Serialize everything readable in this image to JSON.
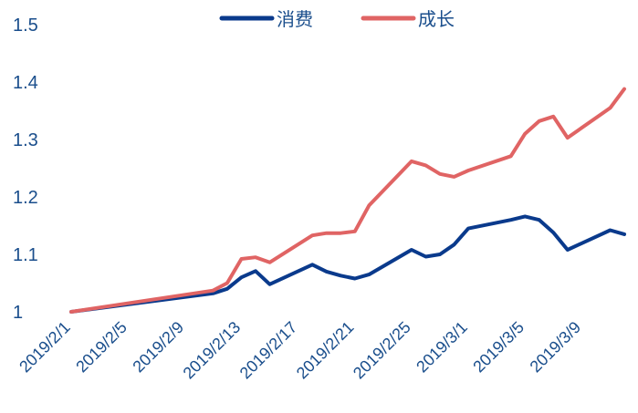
{
  "chart_data": {
    "type": "line",
    "title": "",
    "xlabel": "",
    "ylabel": "",
    "ylim": [
      1,
      1.5
    ],
    "yticks": [
      "1",
      "1.1",
      "1.2",
      "1.3",
      "1.4",
      "1.5"
    ],
    "grid": false,
    "legend": "top",
    "x_tick_labels": [
      "2019/2/1",
      "2019/2/5",
      "2019/2/9",
      "2019/2/13",
      "2019/2/17",
      "2019/2/21",
      "2019/2/25",
      "2019/3/1",
      "2019/3/5",
      "2019/3/9"
    ],
    "x": [
      "2019/2/1",
      "2019/2/11",
      "2019/2/12",
      "2019/2/13",
      "2019/2/14",
      "2019/2/15",
      "2019/2/18",
      "2019/2/19",
      "2019/2/20",
      "2019/2/21",
      "2019/2/22",
      "2019/2/25",
      "2019/2/26",
      "2019/2/27",
      "2019/2/28",
      "2019/3/1",
      "2019/3/4",
      "2019/3/5",
      "2019/3/6",
      "2019/3/7",
      "2019/3/8",
      "2019/3/11",
      "2019/3/12"
    ],
    "series": [
      {
        "name": "消费",
        "color": "#0a3a8c",
        "values": [
          1.0,
          1.032,
          1.04,
          1.06,
          1.071,
          1.048,
          1.082,
          1.07,
          1.063,
          1.058,
          1.065,
          1.108,
          1.096,
          1.1,
          1.117,
          1.145,
          1.16,
          1.166,
          1.16,
          1.138,
          1.108,
          1.142,
          1.135
        ]
      },
      {
        "name": "成长",
        "color": "#e06464",
        "values": [
          1.0,
          1.037,
          1.05,
          1.092,
          1.095,
          1.086,
          1.133,
          1.137,
          1.137,
          1.14,
          1.185,
          1.262,
          1.255,
          1.24,
          1.235,
          1.246,
          1.271,
          1.31,
          1.332,
          1.34,
          1.303,
          1.355,
          1.388
        ]
      }
    ]
  }
}
